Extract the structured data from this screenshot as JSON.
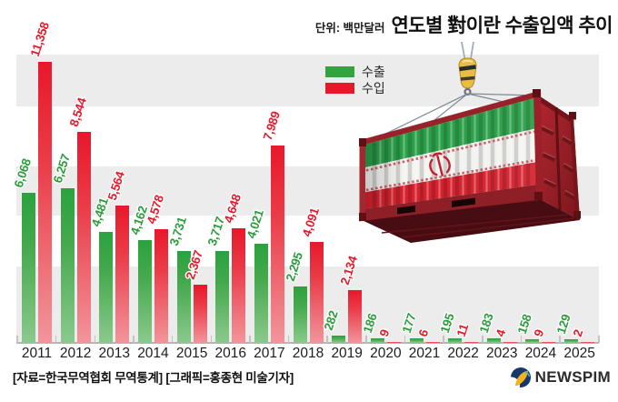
{
  "header": {
    "unit": "단위: 백만달러",
    "title": "연도별 對이란 수출입액 추이"
  },
  "legend": {
    "export_label": "수출",
    "import_label": "수입"
  },
  "chart_data": {
    "type": "bar",
    "title": "연도별 對이란 수출입액 추이",
    "unit_label": "단위: 백만달러",
    "categories": [
      "2011",
      "2012",
      "2013",
      "2014",
      "2015",
      "2016",
      "2017",
      "2018",
      "2019",
      "2020",
      "2021",
      "2022",
      "2023",
      "2024",
      "2025"
    ],
    "series": [
      {
        "name": "수출",
        "color": "#2fa23d",
        "values": [
          6068,
          6257,
          4481,
          4162,
          3731,
          3717,
          4021,
          2295,
          282,
          186,
          177,
          195,
          183,
          158,
          129
        ]
      },
      {
        "name": "수입",
        "color": "#e8182b",
        "values": [
          11358,
          8544,
          5564,
          4578,
          2367,
          4648,
          7989,
          4091,
          2134,
          9,
          6,
          11,
          4,
          9,
          2
        ]
      }
    ],
    "ylim": [
      0,
      11358
    ],
    "legend_position": "top-left",
    "value_labels": "rotated above each bar, thousands separated by comma",
    "background": "alternating horizontal gray bands"
  },
  "illustration": {
    "name": "iran-flag-container-on-crane-hook"
  },
  "footer": {
    "credit": "[자료=한국무역협회 무역통계] [그래픽=홍종현 미술기자]"
  },
  "logo": {
    "text": "NEWSPIM"
  },
  "colors": {
    "export_green": "#2fa23d",
    "import_red": "#e8182b",
    "stripe_gray": "#ececec",
    "axis_gray": "#b5b5b5"
  }
}
